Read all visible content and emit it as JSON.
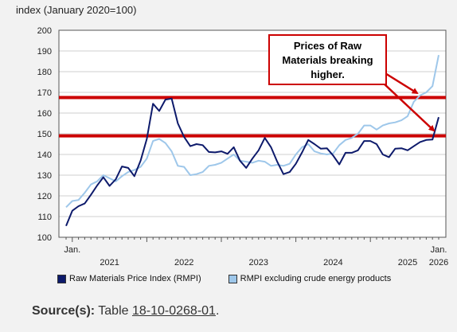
{
  "chart_data": {
    "type": "line",
    "unit_label": "index (January 2020=100)",
    "ylim": [
      100,
      200
    ],
    "yticks": [
      "100",
      "110",
      "120",
      "130",
      "140",
      "150",
      "160",
      "170",
      "180",
      "190",
      "200"
    ],
    "first_tick_label": "Jan.",
    "last_tick_label": "Jan.",
    "year_labels": [
      "2021",
      "2022",
      "2023",
      "2024",
      "2025",
      "2026"
    ],
    "start": "2020-12",
    "end": "2026-01",
    "grid": "horizontal",
    "legend_position": "bottom",
    "series": [
      {
        "name": "Raw Materials Price Index (RMPI)",
        "color": "#0d1a6b",
        "values": [
          105.5,
          112.8,
          115.0,
          116.3,
          120.5,
          125.0,
          129.0,
          124.8,
          128.0,
          134.2,
          133.5,
          129.5,
          137.0,
          147.5,
          164.5,
          161.0,
          166.5,
          167.0,
          155.0,
          148.5,
          144.0,
          145.0,
          144.5,
          141.2,
          141.0,
          141.5,
          140.3,
          143.5,
          137.0,
          133.5,
          138.0,
          142.0,
          148.0,
          143.5,
          136.5,
          130.5,
          131.5,
          135.5,
          141.0,
          147.0,
          145.0,
          142.8,
          143.0,
          139.5,
          135.2,
          140.8,
          140.8,
          142.0,
          146.5,
          146.5,
          145.0,
          140.0,
          138.7,
          142.8,
          143.0,
          142.0,
          144.0,
          146.0,
          147.0,
          147.2,
          158.0
        ]
      },
      {
        "name": "RMPI excluding crude energy products",
        "color": "#9ec7ea",
        "values": [
          114.5,
          117.5,
          118.0,
          121.5,
          125.5,
          127.0,
          130.0,
          128.5,
          127.0,
          129.5,
          131.5,
          132.5,
          134.0,
          138.0,
          146.5,
          147.5,
          145.5,
          141.5,
          134.5,
          134.0,
          130.0,
          130.5,
          131.5,
          134.5,
          135.0,
          136.0,
          138.0,
          140.0,
          137.0,
          136.5,
          136.0,
          137.0,
          136.5,
          134.5,
          135.0,
          134.5,
          135.5,
          140.0,
          143.5,
          145.0,
          141.5,
          140.5,
          140.0,
          140.5,
          144.5,
          147.0,
          148.0,
          150.0,
          154.0,
          154.0,
          152.0,
          154.0,
          155.0,
          155.5,
          156.5,
          158.5,
          165.5,
          168.5,
          170.0,
          173.0,
          188.0
        ]
      }
    ],
    "reference_lines": [
      {
        "value": 167.5,
        "color": "#cc0000"
      },
      {
        "value": 149.0,
        "color": "#cc0000"
      }
    ],
    "annotation": {
      "text": "Prices of Raw Materials breaking higher.",
      "line1": "Prices of Raw",
      "line2": "Materials breaking",
      "line3": "higher.",
      "color": "#cc0000"
    }
  },
  "source": {
    "label": "Source(s):",
    "prefix": "Table",
    "link": "18-10-0268-01",
    "suffix": "."
  }
}
